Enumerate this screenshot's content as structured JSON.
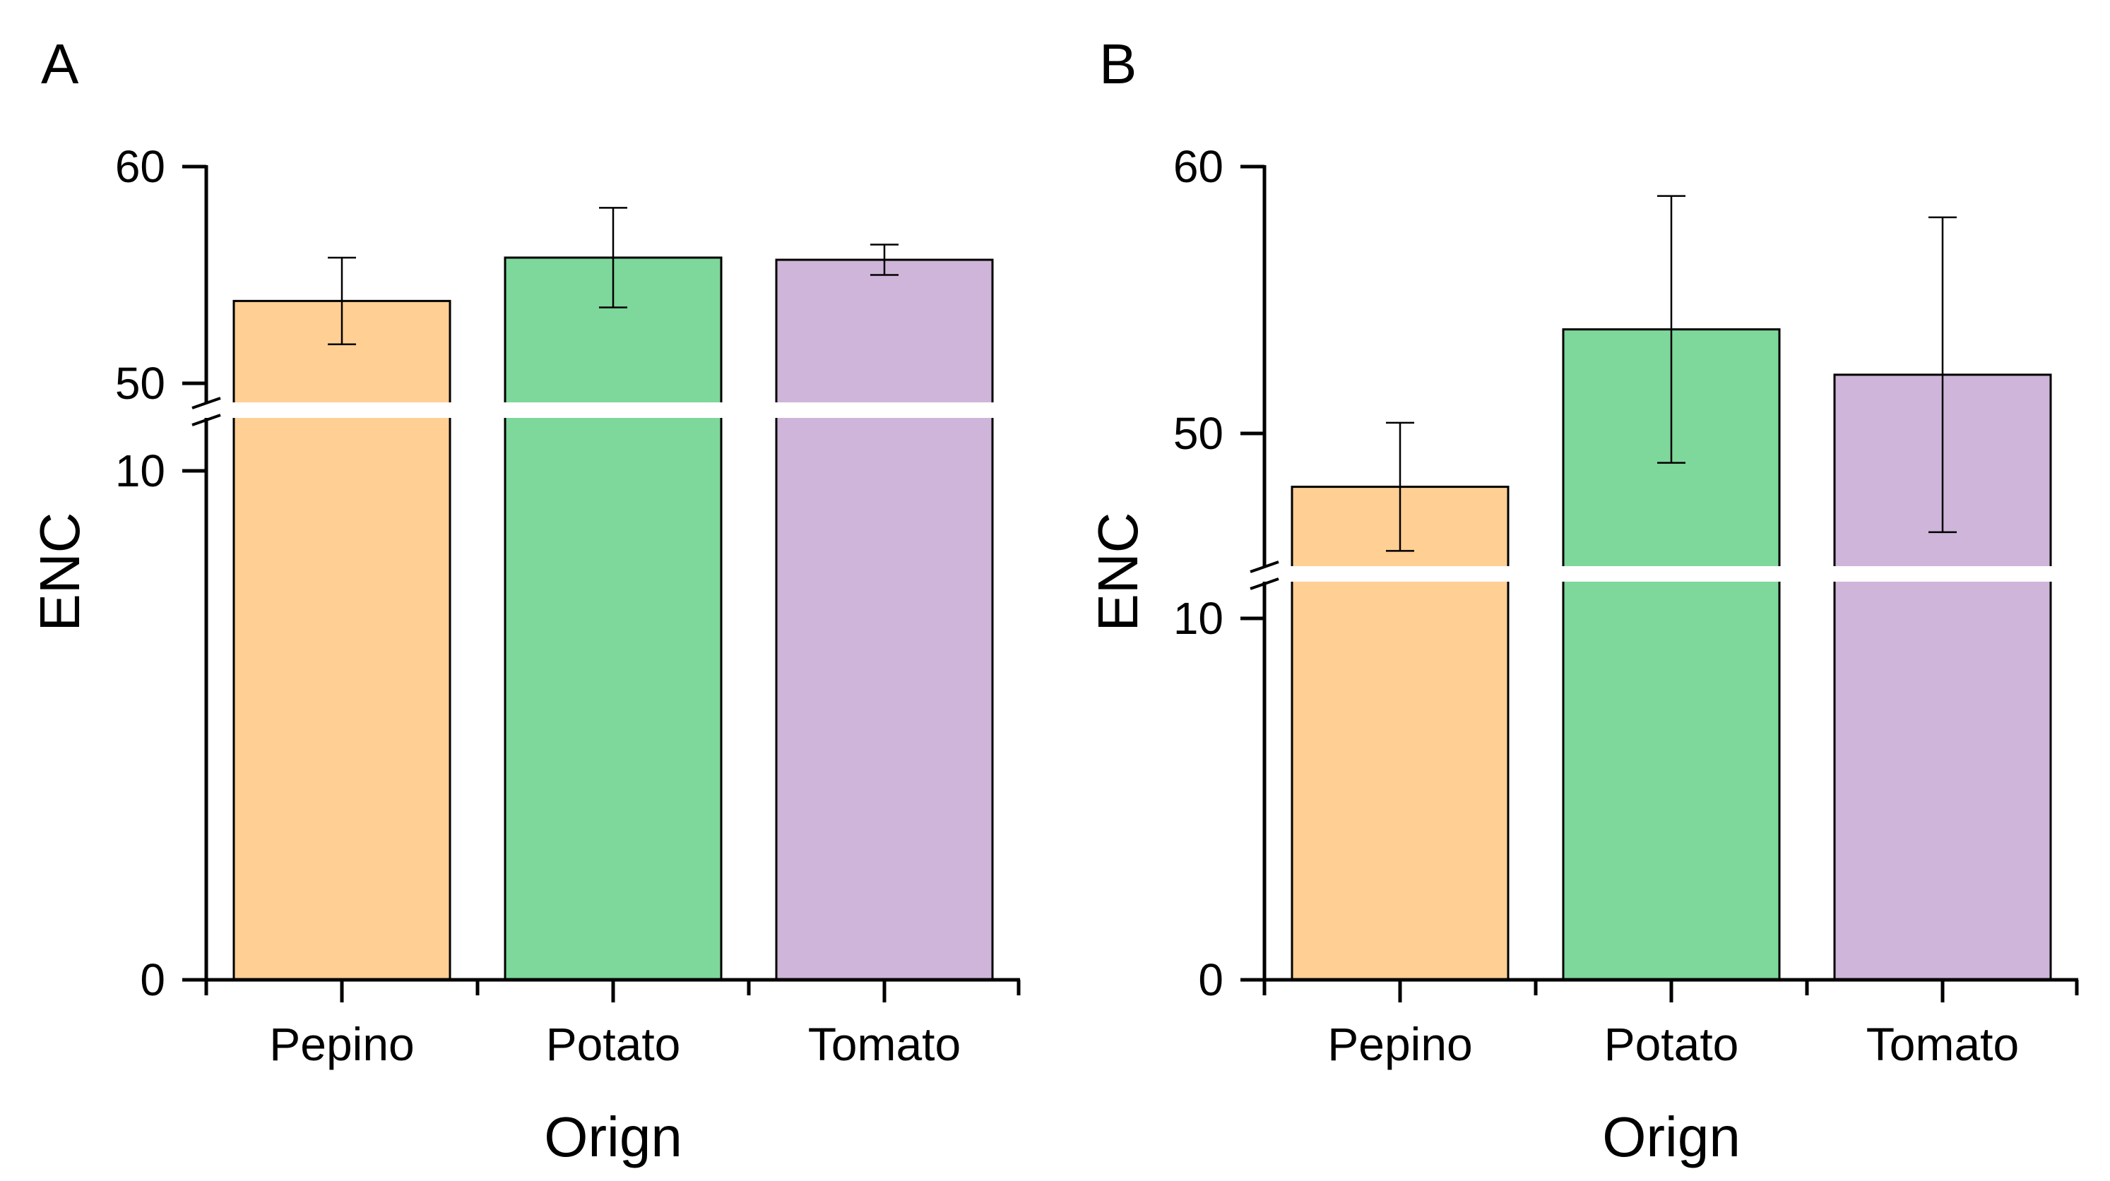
{
  "chart_data": [
    {
      "type": "bar",
      "panel_label": "A",
      "categories": [
        "Pepino",
        "Potato",
        "Tomato"
      ],
      "values": [
        53.8,
        55.8,
        55.7
      ],
      "error": [
        2.0,
        2.3,
        0.7
      ],
      "colors": [
        "#FFCF94",
        "#7ED79B",
        "#CFB5D9"
      ],
      "xlabel": "Orign",
      "ylabel": "ENC",
      "yaxis_break": {
        "lower_range": [
          0,
          10
        ],
        "upper_range": [
          50,
          60
        ]
      },
      "lower_ticks": [
        "0",
        "10"
      ],
      "upper_ticks": [
        "50",
        "60"
      ],
      "grid": false,
      "legend": "none"
    },
    {
      "type": "bar",
      "panel_label": "B",
      "categories": [
        "Pepino",
        "Potato",
        "Tomato"
      ],
      "values": [
        48.0,
        53.9,
        52.2
      ],
      "error": [
        2.4,
        5.0,
        5.9
      ],
      "colors": [
        "#FFCF94",
        "#7ED79B",
        "#CFB5D9"
      ],
      "xlabel": "Orign",
      "ylabel": "ENC",
      "yaxis_break": {
        "lower_range": [
          0,
          10
        ],
        "upper_range": [
          45,
          60
        ]
      },
      "lower_ticks": [
        "0",
        "10"
      ],
      "upper_ticks": [
        "50",
        "60"
      ],
      "grid": false,
      "legend": "none"
    }
  ]
}
